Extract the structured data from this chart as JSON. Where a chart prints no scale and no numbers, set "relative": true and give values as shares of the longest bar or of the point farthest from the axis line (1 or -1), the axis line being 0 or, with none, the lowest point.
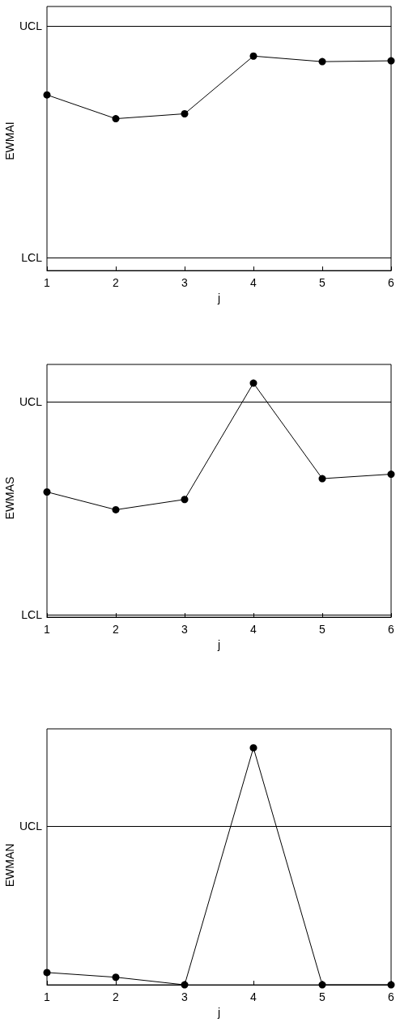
{
  "chart_data": [
    {
      "type": "line",
      "relative": true,
      "xlabel": "j",
      "ylabel": "EWMAI",
      "x": [
        1,
        2,
        3,
        4,
        5,
        6
      ],
      "values": [
        0.819,
        0.708,
        0.731,
        1,
        0.974,
        0.978
      ],
      "color": "#000000",
      "marker": "circle",
      "line_style": "solid",
      "xlim": [
        1,
        6
      ],
      "xticks": [
        1,
        2,
        3,
        4,
        5,
        6
      ],
      "ref_lines": [
        {
          "axis": "y",
          "value": 1.14,
          "label": "UCL",
          "color": "#000000"
        },
        {
          "axis": "y",
          "value": 0.059,
          "label": "LCL",
          "color": "#000000"
        }
      ],
      "grid": false
    },
    {
      "type": "line",
      "relative": true,
      "xlabel": "j",
      "ylabel": "EWMAS",
      "x": [
        1,
        2,
        3,
        4,
        5,
        6
      ],
      "values": [
        0.535,
        0.459,
        0.503,
        1,
        0.592,
        0.611
      ],
      "color": "#000000",
      "marker": "circle",
      "line_style": "solid",
      "xlim": [
        1,
        6
      ],
      "xticks": [
        1,
        2,
        3,
        4,
        5,
        6
      ],
      "ref_lines": [
        {
          "axis": "y",
          "value": 0.915,
          "label": "UCL",
          "color": "#000000"
        },
        {
          "axis": "y",
          "value": 0.01,
          "label": "LCL",
          "color": "#000000"
        }
      ],
      "grid": false
    },
    {
      "type": "line",
      "relative": true,
      "xlabel": "j",
      "ylabel": "EWMAN",
      "x": [
        1,
        2,
        3,
        4,
        5,
        6
      ],
      "values": [
        0.052,
        0.032,
        0,
        1,
        0,
        0
      ],
      "color": "#000000",
      "marker": "circle",
      "line_style": "solid",
      "xlim": [
        1,
        6
      ],
      "xticks": [
        1,
        2,
        3,
        4,
        5,
        6
      ],
      "ref_lines": [
        {
          "axis": "y",
          "value": 0.665,
          "label": "UCL",
          "color": "#000000"
        }
      ],
      "grid": false
    }
  ]
}
